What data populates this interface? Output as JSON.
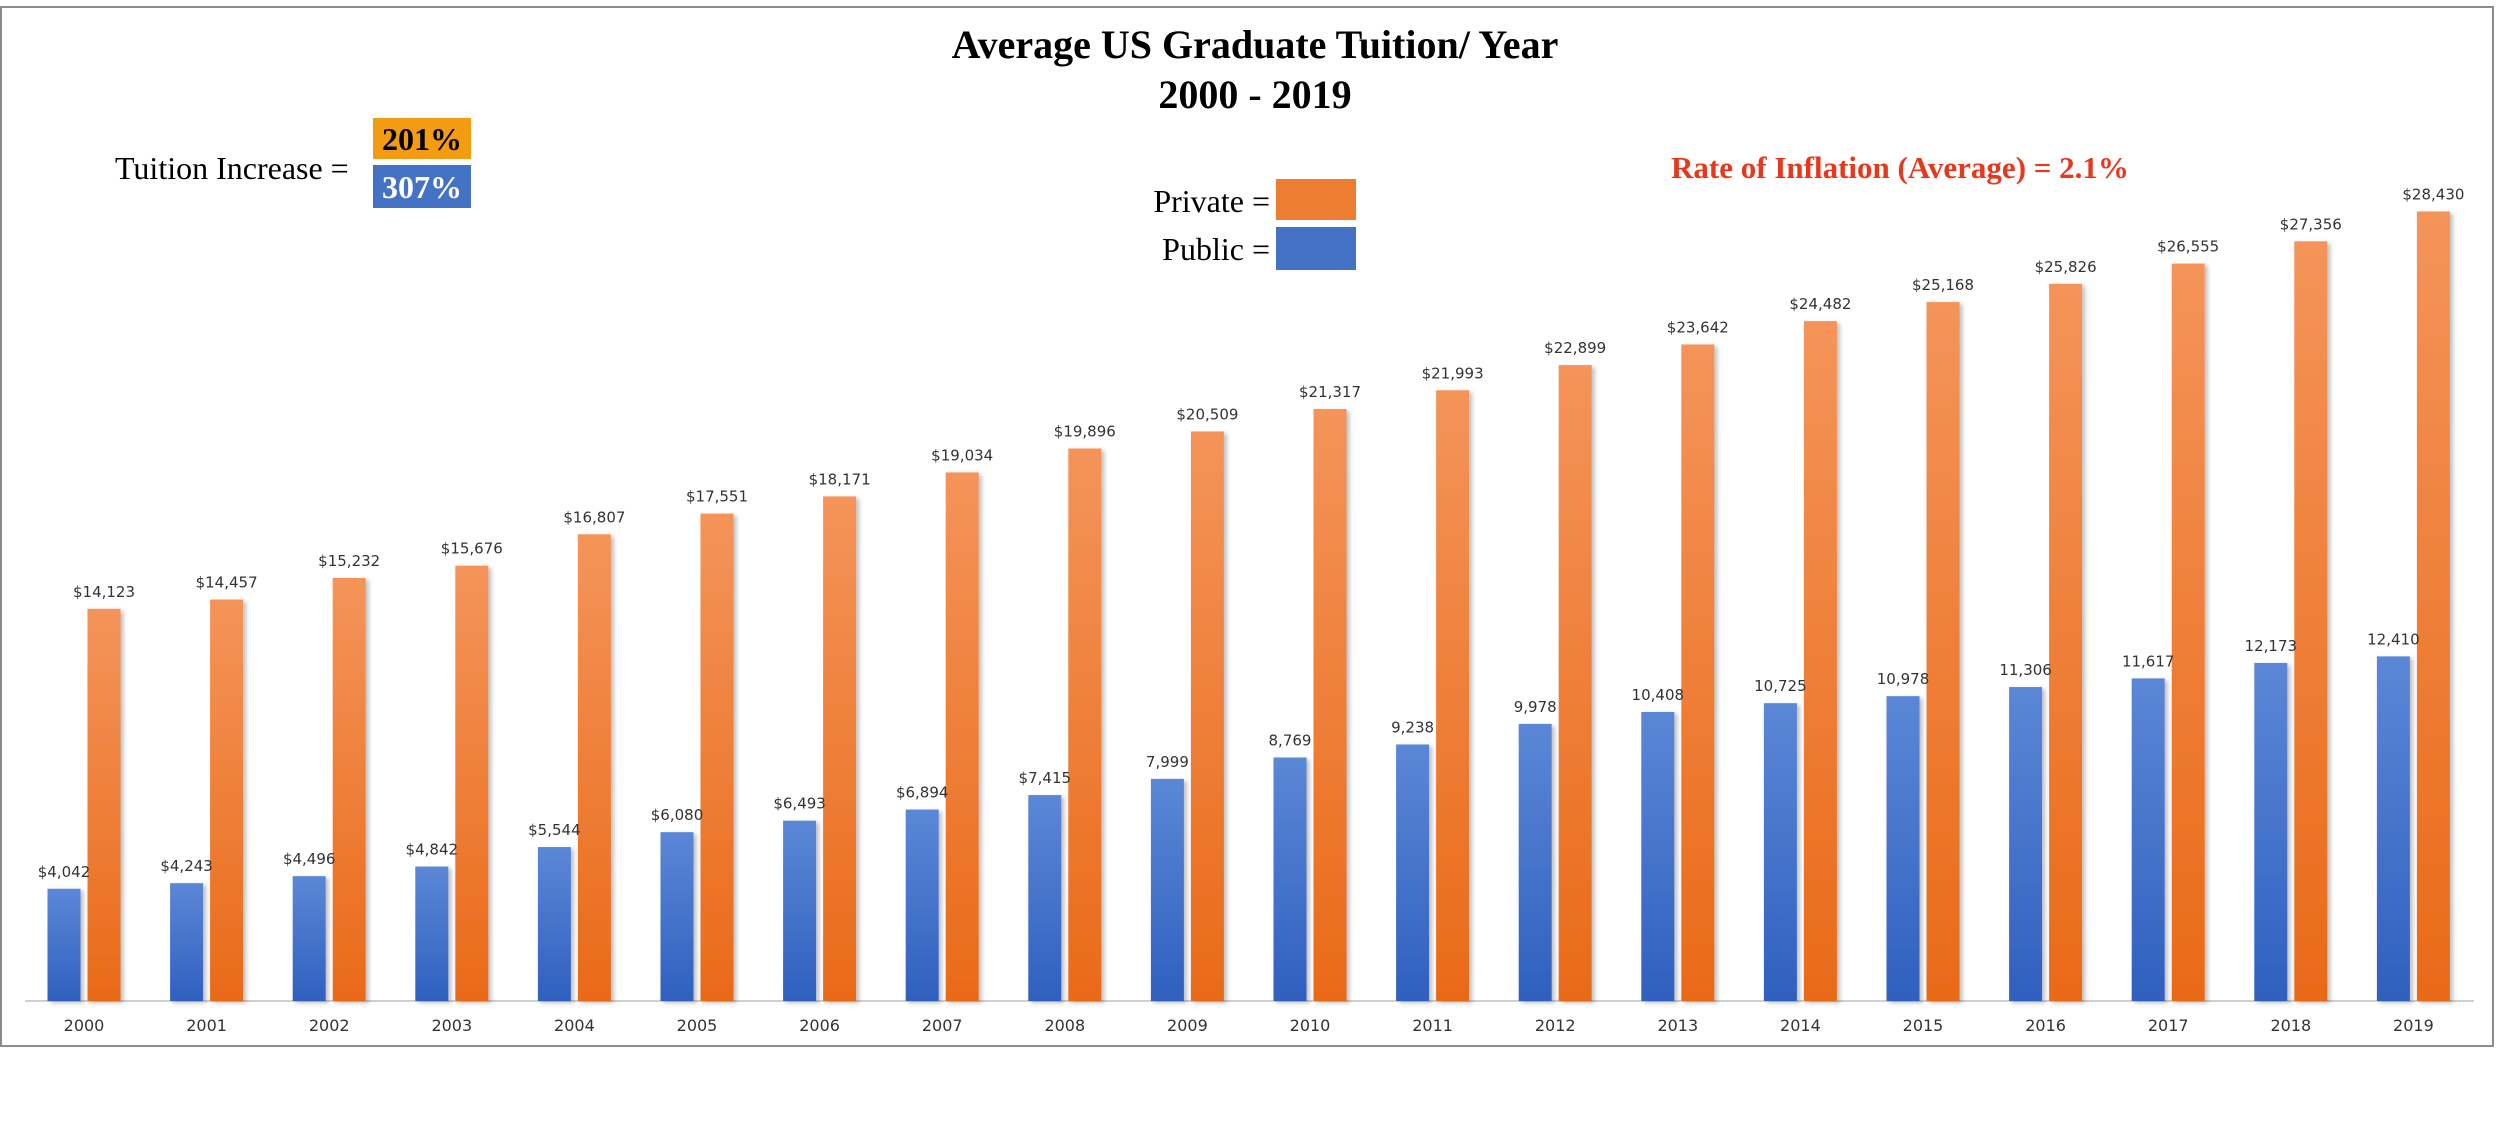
{
  "chart_data": {
    "type": "bar",
    "title": "Average US Graduate Tuition/ Year",
    "subtitle": "2000 - 2019",
    "categories": [
      "2000",
      "2001",
      "2002",
      "2003",
      "2004",
      "2005",
      "2006",
      "2007",
      "2008",
      "2009",
      "2010",
      "2011",
      "2012",
      "2013",
      "2014",
      "2015",
      "2016",
      "2017",
      "2018",
      "2019"
    ],
    "series": [
      {
        "name": "Public",
        "color": "#4472c4",
        "values": [
          4042,
          4243,
          4496,
          4842,
          5544,
          6080,
          6493,
          6894,
          7415,
          7999,
          8769,
          9238,
          9978,
          10408,
          10725,
          10978,
          11306,
          11617,
          12173,
          12410
        ],
        "labels": [
          "$4,042",
          "$4,243",
          "$4,496",
          "$4,842",
          "$5,544",
          "$6,080",
          "$6,493",
          "$6,894",
          "$7,415",
          "7,999",
          "8,769",
          "9,238",
          "9,978",
          "10,408",
          "10,725",
          "10,978",
          "11,306",
          "11,617",
          "12,173",
          "12,410"
        ]
      },
      {
        "name": "Private",
        "color": "#ed7d31",
        "values": [
          14123,
          14457,
          15232,
          15676,
          16807,
          17551,
          18171,
          19034,
          19896,
          20509,
          21317,
          21993,
          22899,
          23642,
          24482,
          25168,
          25826,
          26555,
          27356,
          28430
        ],
        "labels": [
          "$14,123",
          "$14,457",
          "$15,232",
          "$15,676",
          "$16,807",
          "$17,551",
          "$18,171",
          "$19,034",
          "$19,896",
          "$20,509",
          "$21,317",
          "$21,993",
          "$22,899",
          "$23,642",
          "$24,482",
          "$25,168",
          "$25,826",
          "$26,555",
          "$27,356",
          "$28,430"
        ]
      }
    ],
    "ylim": [
      0,
      30000
    ],
    "grid": false,
    "xlabel": "",
    "ylabel": "",
    "annotations": {
      "tuition_increase_label": "Tuition Increase =",
      "private_increase": "201%",
      "public_increase": "307%",
      "private_increase_color": "#f39c12",
      "public_increase_color": "#4472c4",
      "inflation": "Rate of Inflation (Average) = 2.1%",
      "inflation_color": "#e8381c"
    },
    "legend": {
      "placement": "top-center",
      "private_label": "Private =",
      "public_label": "Public ="
    }
  }
}
